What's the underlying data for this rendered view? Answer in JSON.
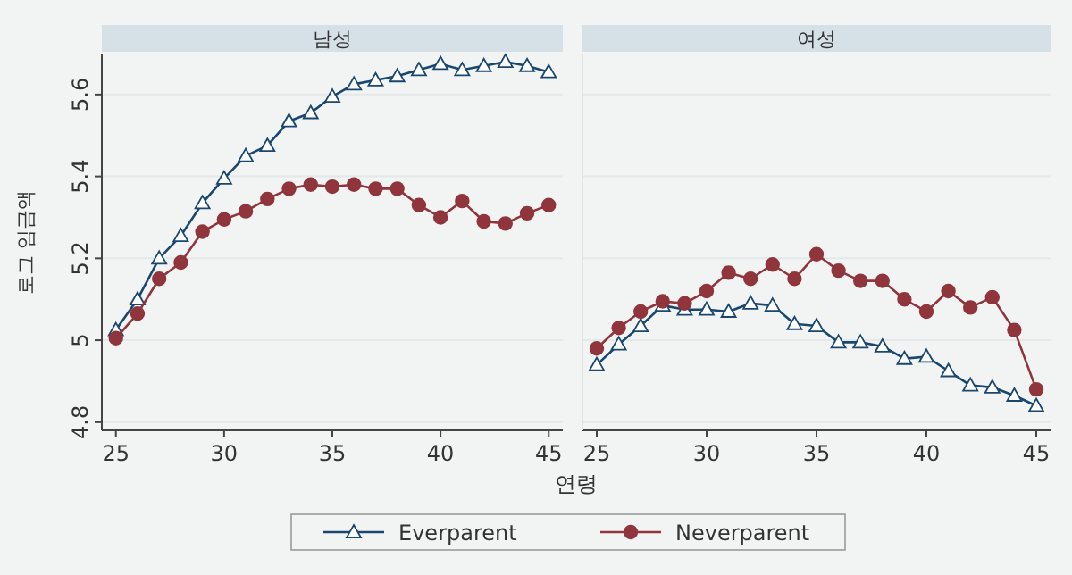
{
  "chart_data": [
    {
      "type": "line",
      "title": "남성",
      "xlabel": "연령",
      "ylabel": "로그 임금액",
      "x": [
        25,
        26,
        27,
        28,
        29,
        30,
        31,
        32,
        33,
        34,
        35,
        36,
        37,
        38,
        39,
        40,
        41,
        42,
        43,
        44,
        45
      ],
      "xlim": [
        24.35,
        45.65
      ],
      "ylim": [
        4.78,
        5.7
      ],
      "xticks": [
        25,
        30,
        35,
        40,
        45
      ],
      "yticks": [
        4.8,
        5,
        5.2,
        5.4,
        5.6
      ],
      "grid": "y",
      "legend": "bottom",
      "series": [
        {
          "name": "Everparent",
          "color": "#1a476f",
          "marker": "triangle",
          "values": [
            5.025,
            5.1,
            5.2,
            5.255,
            5.335,
            5.395,
            5.45,
            5.475,
            5.535,
            5.555,
            5.595,
            5.625,
            5.635,
            5.645,
            5.66,
            5.675,
            5.66,
            5.67,
            5.68,
            5.67,
            5.655
          ]
        },
        {
          "name": "Neverparent",
          "color": "#90353b",
          "marker": "circle",
          "values": [
            5.005,
            5.065,
            5.15,
            5.19,
            5.265,
            5.295,
            5.315,
            5.345,
            5.37,
            5.38,
            5.375,
            5.38,
            5.37,
            5.37,
            5.33,
            5.3,
            5.34,
            5.29,
            5.285,
            5.31,
            5.33
          ]
        }
      ]
    },
    {
      "type": "line",
      "title": "여성",
      "x": [
        25,
        26,
        27,
        28,
        29,
        30,
        31,
        32,
        33,
        34,
        35,
        36,
        37,
        38,
        39,
        40,
        41,
        42,
        43,
        44,
        45
      ],
      "xlim": [
        24.35,
        45.65
      ],
      "ylim": [
        4.78,
        5.7
      ],
      "xticks": [
        25,
        30,
        35,
        40,
        45
      ],
      "yticks": [
        4.8,
        5,
        5.2,
        5.4,
        5.6
      ],
      "grid": "y",
      "tick_labels": "x",
      "series": [
        {
          "color": "#1a476f",
          "marker": "triangle",
          "values": [
            4.94,
            4.99,
            5.035,
            5.085,
            5.075,
            5.075,
            5.07,
            5.09,
            5.085,
            5.04,
            5.035,
            4.995,
            4.995,
            4.985,
            4.955,
            4.96,
            4.925,
            4.89,
            4.885,
            4.865,
            4.84
          ]
        },
        {
          "color": "#90353b",
          "marker": "circle",
          "values": [
            4.98,
            5.03,
            5.07,
            5.095,
            5.09,
            5.12,
            5.165,
            5.15,
            5.185,
            5.15,
            5.21,
            5.17,
            5.145,
            5.145,
            5.1,
            5.07,
            5.12,
            5.08,
            5.105,
            5.025,
            4.88
          ]
        }
      ]
    }
  ]
}
